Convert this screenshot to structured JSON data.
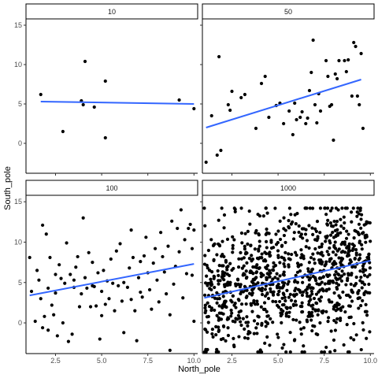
{
  "chart_data": {
    "type": "scatter",
    "facet_layout": "2x2",
    "xlabel": "North_pole",
    "ylabel": "South_pole",
    "xlim": [
      0.9,
      10.2
    ],
    "ylim": [
      -3.8,
      15.8
    ],
    "x_ticks": [
      2.5,
      5.0,
      7.5,
      10.0
    ],
    "x_tick_labels": [
      "2.5",
      "5.0",
      "7.5",
      "10.0"
    ],
    "y_ticks": [
      0,
      5,
      10,
      15
    ],
    "y_tick_labels": [
      "0",
      "5",
      "10",
      "15"
    ],
    "grid": false,
    "colors": {
      "points": "#000000",
      "trend": "#3366ff",
      "strip_bg": "#ffffff",
      "strip_border": "#000000"
    },
    "panels": [
      {
        "label": "10",
        "trend": {
          "x": [
            1.7,
            10.0
          ],
          "y": [
            5.3,
            5.0
          ]
        },
        "points": [
          [
            1.7,
            6.2
          ],
          [
            2.9,
            1.5
          ],
          [
            3.9,
            5.4
          ],
          [
            4.0,
            4.9
          ],
          [
            4.1,
            10.4
          ],
          [
            4.6,
            4.6
          ],
          [
            5.2,
            7.9
          ],
          [
            5.2,
            0.7
          ],
          [
            9.2,
            5.5
          ],
          [
            10.0,
            4.4
          ]
        ]
      },
      {
        "label": "50",
        "trend": {
          "x": [
            1.1,
            9.5
          ],
          "y": [
            2.0,
            8.1
          ]
        },
        "points": [
          [
            1.1,
            -2.4
          ],
          [
            1.4,
            3.5
          ],
          [
            1.7,
            -1.5
          ],
          [
            1.8,
            11.0
          ],
          [
            1.9,
            -0.9
          ],
          [
            2.3,
            4.9
          ],
          [
            2.4,
            4.2
          ],
          [
            2.5,
            6.6
          ],
          [
            3.0,
            5.8
          ],
          [
            3.2,
            6.2
          ],
          [
            3.8,
            1.9
          ],
          [
            4.1,
            7.6
          ],
          [
            4.3,
            8.5
          ],
          [
            4.5,
            3.3
          ],
          [
            4.9,
            4.8
          ],
          [
            5.1,
            5.1
          ],
          [
            5.3,
            2.5
          ],
          [
            5.6,
            4.1
          ],
          [
            5.8,
            1.1
          ],
          [
            5.9,
            5.1
          ],
          [
            6.0,
            3.0
          ],
          [
            6.2,
            3.3
          ],
          [
            6.3,
            4.0
          ],
          [
            6.5,
            2.5
          ],
          [
            6.6,
            3.2
          ],
          [
            6.7,
            6.7
          ],
          [
            6.8,
            9.0
          ],
          [
            6.9,
            13.1
          ],
          [
            7.0,
            4.9
          ],
          [
            7.1,
            2.6
          ],
          [
            7.2,
            6.3
          ],
          [
            7.3,
            4.1
          ],
          [
            7.6,
            10.5
          ],
          [
            7.7,
            8.5
          ],
          [
            7.8,
            4.7
          ],
          [
            7.9,
            4.9
          ],
          [
            8.0,
            0.4
          ],
          [
            8.1,
            8.8
          ],
          [
            8.2,
            8.2
          ],
          [
            8.3,
            10.5
          ],
          [
            8.6,
            10.5
          ],
          [
            8.7,
            9.1
          ],
          [
            8.8,
            10.6
          ],
          [
            9.0,
            6.0
          ],
          [
            9.1,
            12.8
          ],
          [
            9.2,
            12.3
          ],
          [
            9.3,
            6.0
          ],
          [
            9.4,
            4.9
          ],
          [
            9.5,
            11.4
          ],
          [
            9.6,
            1.9
          ]
        ]
      },
      {
        "label": "100",
        "trend": {
          "x": [
            1.1,
            10.0
          ],
          "y": [
            3.4,
            7.3
          ]
        },
        "points": [
          [
            1.1,
            8.1
          ],
          [
            1.2,
            3.9
          ],
          [
            1.4,
            0.2
          ],
          [
            1.5,
            6.5
          ],
          [
            1.6,
            5.3
          ],
          [
            1.7,
            3.0
          ],
          [
            1.8,
            12.1
          ],
          [
            1.8,
            -0.6
          ],
          [
            1.9,
            0.8
          ],
          [
            2.0,
            11.0
          ],
          [
            2.1,
            -0.9
          ],
          [
            2.1,
            4.3
          ],
          [
            2.2,
            8.1
          ],
          [
            2.3,
            2.2
          ],
          [
            2.4,
            1.0
          ],
          [
            2.5,
            6.0
          ],
          [
            2.6,
            -1.6
          ],
          [
            2.7,
            7.2
          ],
          [
            2.8,
            5.5
          ],
          [
            2.9,
            0.0
          ],
          [
            3.0,
            4.9
          ],
          [
            3.1,
            9.9
          ],
          [
            3.2,
            -2.3
          ],
          [
            3.4,
            -1.4
          ],
          [
            3.5,
            4.4
          ],
          [
            3.5,
            5.3
          ],
          [
            3.6,
            6.9
          ],
          [
            3.7,
            8.2
          ],
          [
            3.8,
            2.0
          ],
          [
            3.9,
            3.6
          ],
          [
            4.0,
            13.0
          ],
          [
            4.1,
            5.6
          ],
          [
            4.2,
            4.3
          ],
          [
            4.3,
            8.7
          ],
          [
            4.4,
            2.0
          ],
          [
            4.5,
            7.5
          ],
          [
            4.6,
            4.5
          ],
          [
            4.7,
            2.1
          ],
          [
            4.8,
            6.2
          ],
          [
            4.9,
            -2.0
          ],
          [
            5.0,
            3.9
          ],
          [
            5.1,
            6.5
          ],
          [
            5.2,
            2.3
          ],
          [
            5.3,
            5.2
          ],
          [
            5.4,
            3.0
          ],
          [
            5.5,
            7.9
          ],
          [
            5.6,
            4.9
          ],
          [
            5.7,
            1.5
          ],
          [
            5.8,
            8.9
          ],
          [
            5.9,
            4.6
          ],
          [
            6.0,
            9.8
          ],
          [
            6.1,
            2.7
          ],
          [
            6.2,
            5.0
          ],
          [
            6.2,
            -1.2
          ],
          [
            6.4,
            4.4
          ],
          [
            6.5,
            6.8
          ],
          [
            6.6,
            2.9
          ],
          [
            6.7,
            8.1
          ],
          [
            6.8,
            1.5
          ],
          [
            6.9,
            -2.2
          ],
          [
            7.0,
            5.6
          ],
          [
            7.1,
            7.6
          ],
          [
            7.2,
            3.2
          ],
          [
            7.3,
            8.3
          ],
          [
            7.4,
            10.6
          ],
          [
            7.5,
            6.2
          ],
          [
            7.6,
            4.1
          ],
          [
            7.7,
            1.7
          ],
          [
            7.8,
            7.4
          ],
          [
            7.9,
            9.2
          ],
          [
            8.0,
            5.3
          ],
          [
            8.1,
            2.6
          ],
          [
            8.2,
            11.2
          ],
          [
            8.3,
            8.2
          ],
          [
            8.4,
            6.3
          ],
          [
            8.5,
            3.6
          ],
          [
            8.6,
            9.5
          ],
          [
            8.7,
            1.0
          ],
          [
            8.8,
            12.6
          ],
          [
            8.9,
            4.8
          ],
          [
            9.0,
            7.0
          ],
          [
            9.1,
            11.7
          ],
          [
            9.2,
            8.8
          ],
          [
            9.3,
            14.0
          ],
          [
            9.4,
            3.1
          ],
          [
            9.5,
            10.3
          ],
          [
            9.6,
            6.1
          ],
          [
            9.7,
            11.7
          ],
          [
            9.8,
            12.2
          ],
          [
            9.9,
            9.2
          ],
          [
            10.0,
            11.5
          ],
          [
            10.0,
            0.2
          ],
          [
            9.9,
            5.9
          ],
          [
            8.7,
            -3.4
          ],
          [
            5.0,
            0.9
          ],
          [
            4.5,
            4.6
          ],
          [
            7.1,
            3.8
          ],
          [
            6.6,
            11.5
          ],
          [
            2.5,
            3.7
          ],
          [
            3.3,
            6.0
          ]
        ]
      },
      {
        "label": "1000",
        "trend": {
          "x": [
            1.0,
            10.0
          ],
          "y": [
            3.1,
            7.7
          ]
        },
        "points_generated": true,
        "point_count": 1000,
        "point_range": {
          "x": [
            1.0,
            10.0
          ],
          "y": [
            -3.6,
            14.2
          ]
        }
      }
    ]
  }
}
